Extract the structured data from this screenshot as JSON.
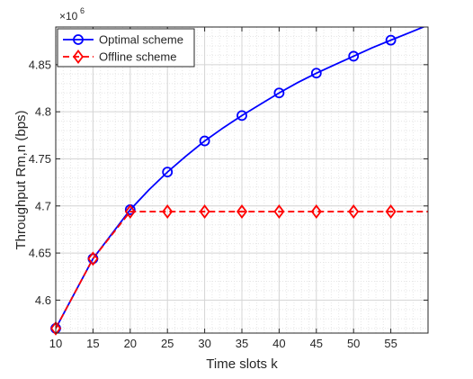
{
  "chart_data": {
    "type": "line",
    "xlabel": "Time slots k",
    "ylabel": "Throughput Rm,n (bps)",
    "y_multiplier": {
      "base": "×10",
      "exponent": "6"
    },
    "xlim": [
      10,
      60
    ],
    "ylim": [
      4.565,
      4.89
    ],
    "x_ticks": [
      10,
      15,
      20,
      25,
      30,
      35,
      40,
      45,
      50,
      55
    ],
    "x_tick_labels": [
      "10",
      "15",
      "20",
      "25",
      "30",
      "35",
      "40",
      "45",
      "50",
      "55"
    ],
    "y_ticks": [
      4.6,
      4.65,
      4.7,
      4.75,
      4.8,
      4.85
    ],
    "y_tick_labels": [
      "4.6",
      "4.65",
      "4.7",
      "4.75",
      "4.8",
      "4.85"
    ],
    "grid": true,
    "legend_position": "top-left",
    "series": [
      {
        "name": "Optimal scheme",
        "color": "#0000ff",
        "line_style": "solid",
        "marker": "circle",
        "line_x": [
          10,
          12.5,
          15,
          17.5,
          20,
          22.5,
          25,
          27.5,
          30,
          32.5,
          35,
          37.5,
          40,
          42.5,
          45,
          47.5,
          50,
          52.5,
          55,
          57.5,
          60
        ],
        "line_y": [
          4.57,
          4.607,
          4.644,
          4.67,
          4.696,
          4.717,
          4.736,
          4.753,
          4.769,
          4.783,
          4.796,
          4.808,
          4.82,
          4.831,
          4.841,
          4.85,
          4.859,
          4.868,
          4.876,
          4.884,
          4.892
        ],
        "marker_x": [
          10,
          15,
          20,
          25,
          30,
          35,
          40,
          45,
          50,
          55
        ],
        "marker_y": [
          4.57,
          4.644,
          4.696,
          4.736,
          4.769,
          4.796,
          4.82,
          4.841,
          4.859,
          4.876
        ]
      },
      {
        "name": "Offline scheme",
        "color": "#ff0000",
        "line_style": "dashed",
        "marker": "diamond",
        "line_x": [
          10,
          15,
          20,
          25,
          30,
          35,
          40,
          45,
          50,
          55,
          60
        ],
        "line_y": [
          4.57,
          4.644,
          4.694,
          4.694,
          4.694,
          4.694,
          4.694,
          4.694,
          4.694,
          4.694,
          4.694
        ],
        "marker_x": [
          10,
          15,
          20,
          25,
          30,
          35,
          40,
          45,
          50,
          55
        ],
        "marker_y": [
          4.57,
          4.644,
          4.694,
          4.694,
          4.694,
          4.694,
          4.694,
          4.694,
          4.694,
          4.694
        ]
      }
    ]
  }
}
